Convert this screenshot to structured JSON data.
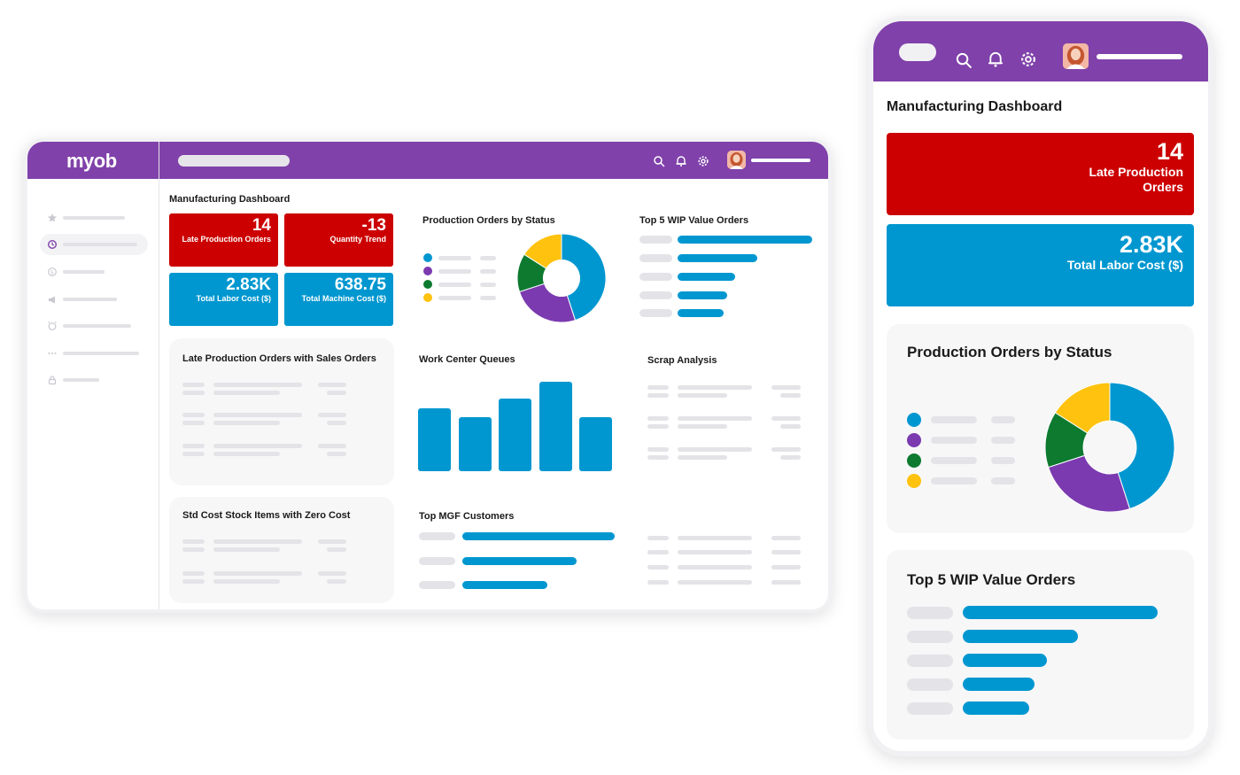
{
  "colors": {
    "purple": "#8041aa",
    "red": "#cc0000",
    "blue": "#0097d0",
    "green": "#0d7a2f",
    "yellow": "#ffc20e",
    "donut_purple": "#7b3ab0"
  },
  "desktop": {
    "logo": "myob",
    "icons": [
      "search-icon",
      "bell-icon",
      "gear-icon"
    ],
    "sidebar_icons": [
      "star-icon",
      "clock-icon",
      "dollar-icon",
      "megaphone-icon",
      "alarm-icon",
      "more-icon",
      "lock-icon"
    ],
    "title": "Manufacturing Dashboard",
    "kpis": [
      {
        "value": "14",
        "label": "Late Production Orders",
        "color": "red"
      },
      {
        "value": "-13",
        "label": "Quantity Trend",
        "color": "red"
      },
      {
        "value": "2.83K",
        "label": "Total Labor Cost ($)",
        "color": "blue"
      },
      {
        "value": "638.75",
        "label": "Total Machine Cost ($)",
        "color": "blue"
      }
    ],
    "cards": {
      "status": "Production Orders by Status",
      "wip": "Top 5 WIP Value Orders",
      "late": "Late Production Orders with Sales Orders",
      "queues": "Work Center Queues",
      "scrap": "Scrap Analysis",
      "stdcost": "Std Cost Stock Items with Zero Cost",
      "mgf": "Top MGF Customers"
    }
  },
  "mobile": {
    "icons": [
      "search-icon",
      "bell-icon",
      "gear-icon"
    ],
    "title": "Manufacturing Dashboard",
    "kpis": [
      {
        "value": "14",
        "label_line1": "Late Production",
        "label_line2": "Orders"
      },
      {
        "value": "2.83K",
        "label_line1": "Total Labor Cost ($)"
      }
    ],
    "cards": {
      "status": "Production Orders by Status",
      "wip": "Top 5 WIP Value Orders"
    }
  },
  "chart_data": [
    {
      "type": "pie",
      "categories": [
        "blue",
        "purple",
        "green",
        "yellow"
      ],
      "values": [
        45,
        25,
        14,
        16
      ]
    },
    {
      "type": "bar",
      "values": [
        0.55,
        0.47,
        0.63,
        0.78,
        0.47
      ]
    },
    {
      "type": "bar",
      "orientation": "horizontal",
      "values": [
        1.0,
        0.59,
        0.43,
        0.37,
        0.34
      ]
    },
    {
      "type": "bar",
      "orientation": "horizontal",
      "values": [
        1.0,
        0.75,
        0.56
      ]
    }
  ]
}
